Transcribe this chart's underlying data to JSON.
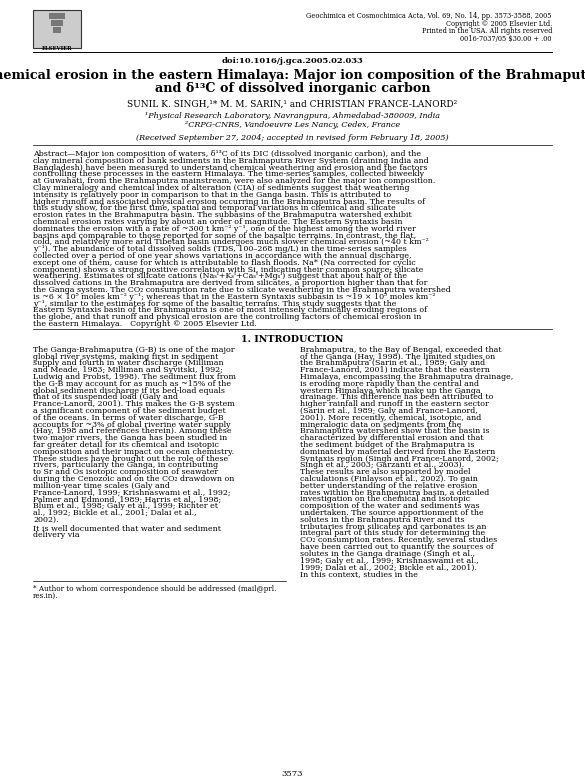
{
  "journal_line1": "Geochimica et Cosmochimica Acta, Vol. 69, No. 14, pp. 3573-3588, 2005",
  "journal_line2": "Copyright © 2005 Elsevier Ltd.",
  "journal_line3": "Printed in the USA. All rights reserved",
  "journal_line4": "0016-7037/05 $30.00 + .00",
  "doi": "doi:10.1016/j.gca.2005.02.033",
  "title_line1": "Chemical erosion in the eastern Himalaya: Major ion composition of the Brahmaputra",
  "title_line2": "and δ¹³C of dissolved inorganic carbon",
  "authors": "SUNIL K. SINGH,¹* M. M. SARIN,¹ and CHRISTIAN FRANCE-LANORD²",
  "affil1": "¹Physical Research Laboratory, Navrangpura, Ahmedabad-380009, India",
  "affil2": "²CRPG-CNRS, Vandoeuvre Les Nancy, Cedex, France",
  "received": "(Received September 27, 2004; accepted in revised form February 18, 2005)",
  "abstract_label": "Abstract—",
  "abstract_body": "Major ion composition of waters, δ¹³C of its DIC (dissolved inorganic carbon), and the clay mineral composition of bank sediments in the Brahmaputra River System (draining India and Bangladesh) have been measured to understand chemical weathering and erosion and the factors controlling these processes in the eastern Himalaya. The time-series samples, collected biweekly at Guwahati, from the Brahmaputra mainstream, were also analyzed for the major ion composition. Clay mineralogy and chemical index of alteration (CIA) of sediments suggest that weathering intensity is relatively poor in comparison to that in the Ganga basin. This is attributed to higher runoff and associated physical erosion occurring in the Brahmaputra basin. The results of this study show, for the first time, spatial and temporal variations in chemical and silicate erosion rates in the Brahmaputra basin. The subbasins of the Brahmaputra watershed exhibit chemical erosion rates varying by about an order of magnitude. The Eastern Syntaxis basin dominates the erosion with a rate of ~300 t km⁻² y⁻¹, one of the highest among the world river basins and comparable to those reported for some of the basaltic terrains. In contrast, the flat, cold, and relatively more arid Tibetan basin undergoes much slower chemical erosion (~40 t km⁻² y⁻¹). The abundance of total dissolved solids (TDS, 100–268 mg/L) in the time-series samples collected over a period of one year shows variations in accordance with the annual discharge, except one of them, cause for which is attributable to flash floods. Na* (Na corrected for cyclic component) shows a strong positive correlation with Si, indicating their common source: silicate weathering. Estimates of silicate cations (Naₛᴵ+Kₛᴵ+Caₛᴵ+Mgₛᴵ) suggest that about half of the dissolved cations in the Brahmaputra are derived from silicates, a proportion higher than that for the Ganga system. The CO₂ consumption rate due to silicate weathering in the Brahmaputra watershed is ~6 × 10⁵ moles km⁻² y⁻¹; whereas that in the Eastern Syntaxis subbasin is ~19 × 10⁵ moles km⁻² y⁻¹, similar to the estimates for some of the basaltic terrains. This study suggests that the Eastern Syntaxis basin of the Brahmaputra is one of most intensely chemically eroding regions of the globe, and that runoff and physical erosion are the controlling factors of chemical erosion in the eastern Himalaya. Copyright © 2005 Elsevier Ltd.",
  "intro_heading": "1. INTRODUCTION",
  "col1_para1": "   The Ganga-Brahmaputra (G-B) is one of the major global river systems, making first in sediment supply and fourth in water discharge (Milliman and Meade, 1983; Milliman and Syvitski, 1992; Ludwig and Probst, 1998). The sediment flux from the G-B may account for as much as ~15% of the global sediment discharge if its bed-load equals that of its suspended load (Galy and France-Lanord, 2001). This makes the G-B system a significant component of the sediment budget of the oceans. In terms of water discharge, G-B accounts for ~3% of global riverine water supply (Hay, 1998 and references therein). Among these two major rivers, the Ganga has been studied in far greater detail for its chemical and isotopic composition and their impact on ocean chemistry. These studies have brought out the role of these rivers, particularly the Ganga, in contributing to Sr and Os isotopic composition of seawater during the Cenozoic and on the CO₂ drawdown on million-year time scales (Galy and France-Lanord, 1999; Krishnaswami et al., 1992; Palmer and Edmond, 1989; Harris et al., 1998; Blum et al., 1998; Galy et al., 1999; Richter et al., 1992; Bickle et al., 2001; Dalai et al., 2002).",
  "col1_para2": "   It is well documented that water and sediment delivery via",
  "col2_text": "Brahmaputra, to the Bay of Bengal, exceeded that of the Ganga (Hay, 1998). The limited studies on the Brahmaputra (Sarin et al., 1989; Galy and France-Lanord, 2001) indicate that the eastern Himalaya, encompassing the Brahmaputra drainage, is eroding more rapidly than the central and western Himalaya which make up the Ganga drainage. This difference has been attributed to higher rainfall and runoff in the eastern sector (Sarin et al., 1989; Galy and France-Lanord, 2001). More recently, chemical, isotopic, and mineralogic data on sediments from the Brahmaputra watershed show that the basin is characterized by differential erosion and that the sediment budget of the Brahmaputra is dominated by material derived from the Eastern Syntaxis region (Singh and France-Lanord, 2002; Singh et al., 2003; Garzanti et al., 2003). These results are also supported by model calculations (Finlayson et al., 2002). To gain better understanding of the relative erosion rates within the Brahmaputra basin, a detailed investigation on the chemical and isotopic composition of the water and sediments was undertaken. The source apportionment of the solutes in the Brahmaputra River and its tributaries from silicates and carbonates is an integral part of this study for determining the CO₂ consumption rates. Recently, several studies have been carried out to quantify the sources of solutes in the Ganga drainage (Singh et al., 1998; Galy et al., 1999; Krishnaswami et al., 1999; Dalai et al., 2002; Bickle et al., 2001). In this context, studies in the",
  "footnote": "* Author to whom correspondence should be addressed (mail@prl.\nres.in).",
  "page_number": "3573",
  "bg_color": "#ffffff"
}
